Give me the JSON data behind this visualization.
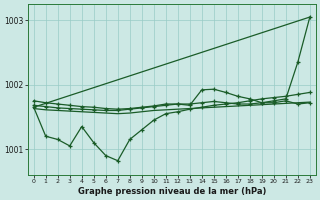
{
  "title": "Graphe pression niveau de la mer (hPa)",
  "bg_color": "#cce8e4",
  "grid_color": "#99ccc6",
  "line_color": "#1a5c28",
  "xlim": [
    -0.5,
    23.5
  ],
  "ylim": [
    1000.6,
    1003.25
  ],
  "yticks": [
    1001,
    1002,
    1003
  ],
  "xticks": [
    0,
    1,
    2,
    3,
    4,
    5,
    6,
    7,
    8,
    9,
    10,
    11,
    12,
    13,
    14,
    15,
    16,
    17,
    18,
    19,
    20,
    21,
    22,
    23
  ],
  "series": [
    {
      "x": [
        0,
        23
      ],
      "y": [
        1001.65,
        1003.05
      ],
      "marker": false,
      "lw": 0.9
    },
    {
      "x": [
        0,
        1,
        2,
        3,
        4,
        5,
        6,
        7,
        8,
        9,
        10,
        11,
        12,
        13,
        14,
        15,
        16,
        17,
        18,
        19,
        20,
        21,
        22,
        23
      ],
      "y": [
        1001.65,
        1001.2,
        1001.15,
        1001.05,
        1001.35,
        1001.1,
        1000.9,
        1000.82,
        1001.15,
        1001.3,
        1001.45,
        1001.55,
        1001.58,
        1001.62,
        1001.65,
        1001.68,
        1001.7,
        1001.72,
        1001.75,
        1001.78,
        1001.8,
        1001.82,
        1001.85,
        1001.88
      ],
      "marker": true,
      "lw": 0.9
    },
    {
      "x": [
        0,
        1,
        2,
        3,
        4,
        5,
        6,
        7,
        8,
        9,
        10,
        11,
        12,
        13,
        14,
        15,
        16,
        17,
        18,
        19,
        20,
        21,
        22,
        23
      ],
      "y": [
        1001.75,
        1001.72,
        1001.7,
        1001.68,
        1001.66,
        1001.65,
        1001.63,
        1001.62,
        1001.63,
        1001.65,
        1001.67,
        1001.7,
        1001.7,
        1001.68,
        1001.92,
        1001.93,
        1001.88,
        1001.82,
        1001.78,
        1001.72,
        1001.72,
        1001.75,
        1001.7,
        1001.72
      ],
      "marker": true,
      "lw": 0.9
    },
    {
      "x": [
        0,
        1,
        2,
        3,
        4,
        5,
        6,
        7,
        8,
        9,
        10,
        11,
        12,
        13,
        14,
        15,
        16,
        17,
        18,
        19,
        20,
        21,
        22,
        23
      ],
      "y": [
        1001.63,
        1001.61,
        1001.6,
        1001.59,
        1001.58,
        1001.57,
        1001.56,
        1001.55,
        1001.56,
        1001.58,
        1001.6,
        1001.61,
        1001.62,
        1001.63,
        1001.64,
        1001.65,
        1001.66,
        1001.67,
        1001.68,
        1001.69,
        1001.7,
        1001.71,
        1001.72,
        1001.73
      ],
      "marker": false,
      "lw": 0.9
    },
    {
      "x": [
        0,
        1,
        2,
        3,
        4,
        5,
        6,
        7,
        8,
        9,
        10,
        11,
        12,
        13,
        14,
        15,
        16,
        17,
        18,
        19,
        20,
        21,
        22,
        23
      ],
      "y": [
        1001.68,
        1001.66,
        1001.64,
        1001.63,
        1001.62,
        1001.61,
        1001.6,
        1001.6,
        1001.62,
        1001.64,
        1001.66,
        1001.68,
        1001.7,
        1001.7,
        1001.72,
        1001.74,
        1001.72,
        1001.7,
        1001.7,
        1001.72,
        1001.75,
        1001.78,
        1002.35,
        1003.05
      ],
      "marker": true,
      "lw": 0.9
    }
  ]
}
